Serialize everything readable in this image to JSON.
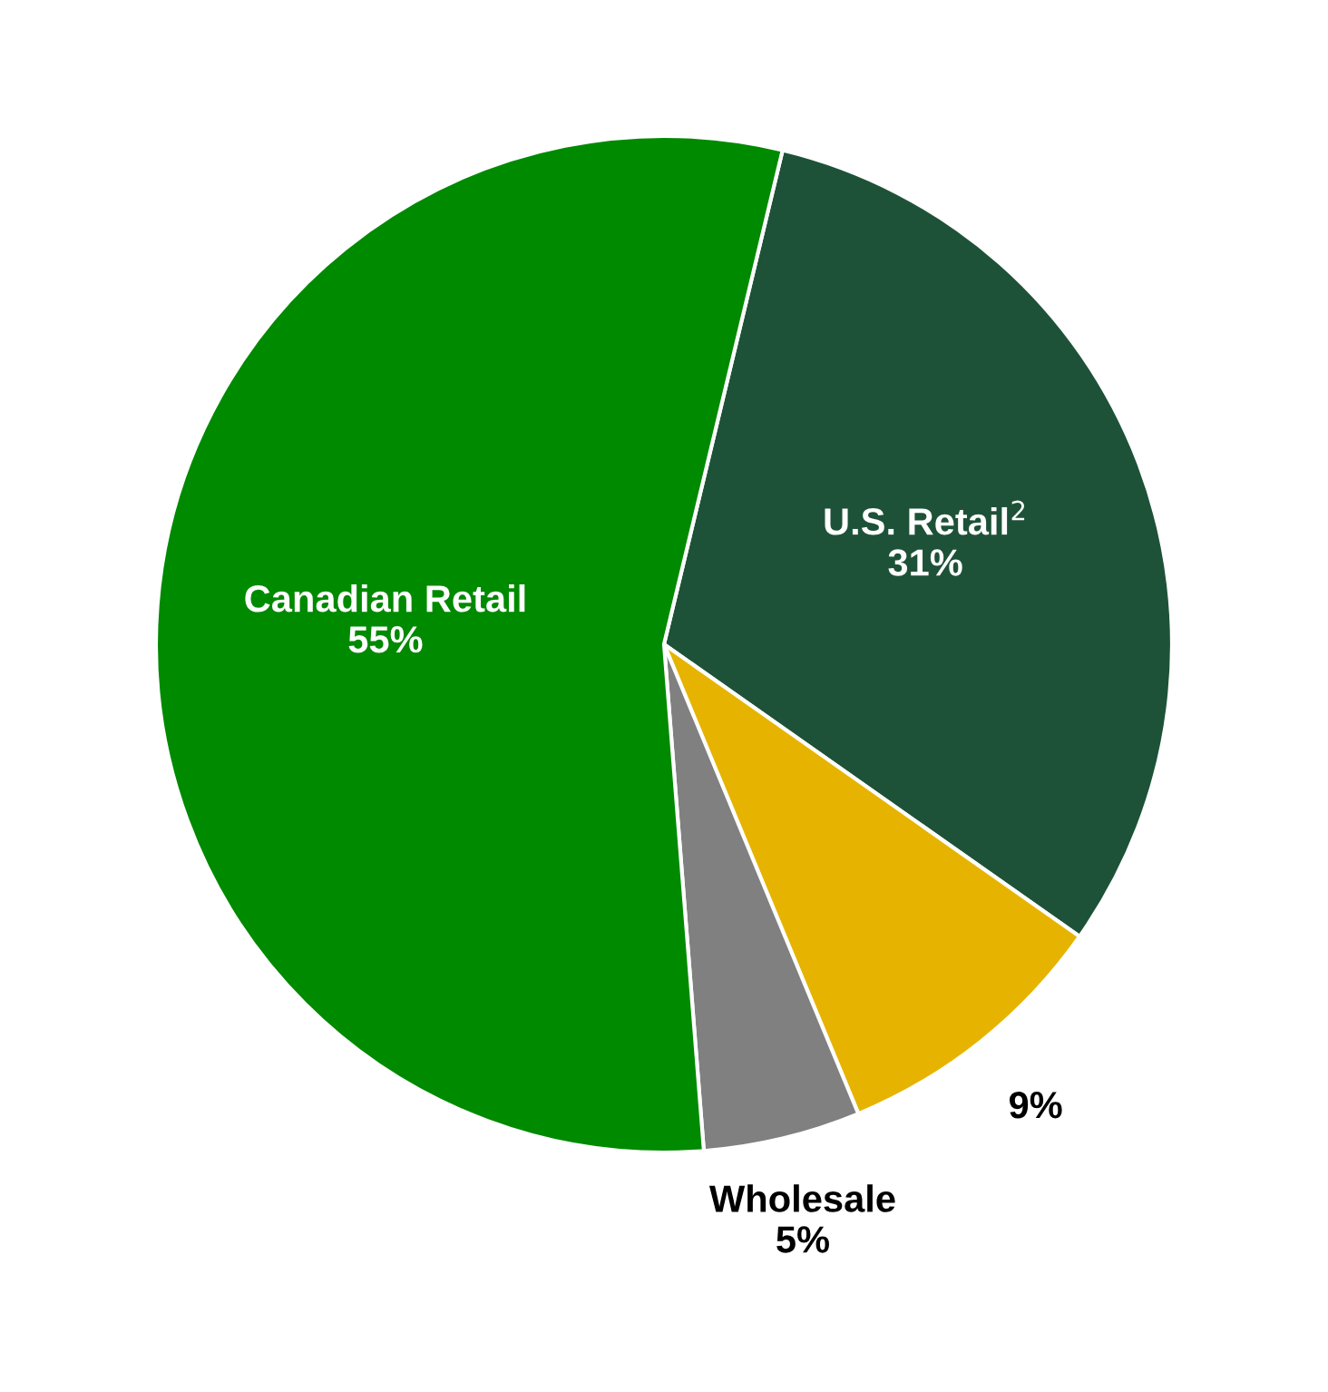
{
  "chart_data": {
    "type": "pie",
    "categories": [
      "U.S. Retail$^{2}$",
      null,
      "Wholesale",
      "Canadian Retail"
    ],
    "values": [
      31,
      9,
      5,
      55
    ],
    "value_labels": [
      "31%",
      "9%",
      "5%",
      "55%"
    ],
    "colors": [
      "#1e5238",
      "#e6b400",
      "#808080",
      "#008a00"
    ],
    "legend": false
  }
}
